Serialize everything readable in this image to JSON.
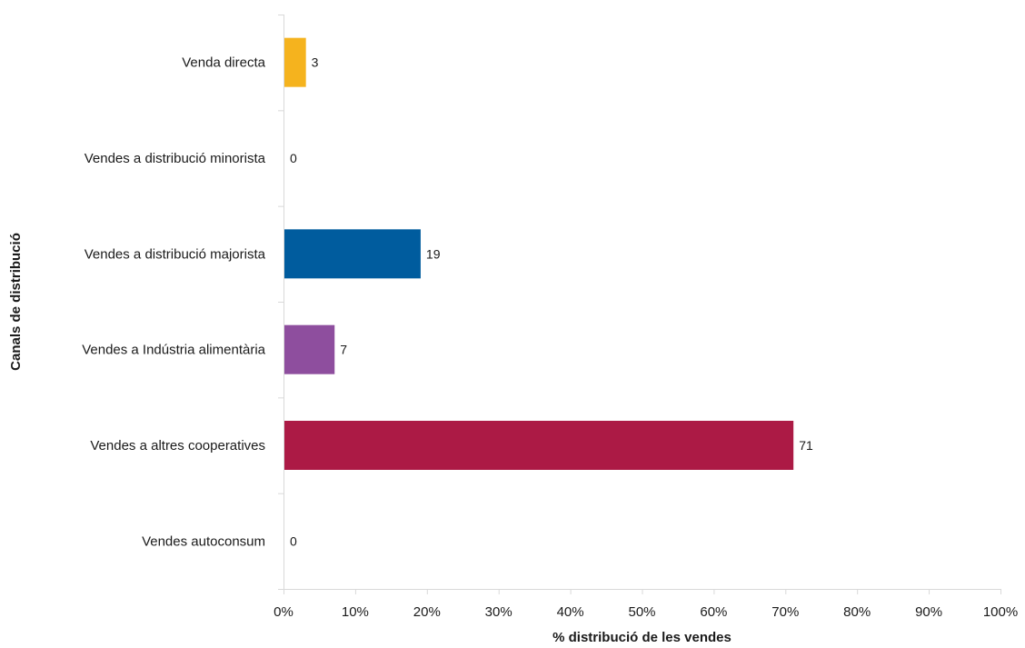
{
  "chart_data": {
    "type": "bar",
    "orientation": "horizontal",
    "categories": [
      "Venda directa",
      "Vendes a distribució minorista",
      "Vendes a distribució majorista",
      "Vendes a Indústria alimentària",
      "Vendes a altres cooperatives",
      "Vendes autoconsum"
    ],
    "values": [
      3,
      0,
      19,
      7,
      71,
      0
    ],
    "value_labels": [
      "3",
      "0",
      "19",
      "7",
      "71",
      "0"
    ],
    "colors": [
      "#F5B31E",
      "#1D5A9A",
      "#005C9E",
      "#8E4E9E",
      "#AC1A45",
      "#333333"
    ],
    "xlabel": "% distribució de les vendes",
    "ylabel": "Canals de distribució",
    "xlim": [
      0,
      100
    ],
    "x_ticks": [
      0,
      10,
      20,
      30,
      40,
      50,
      60,
      70,
      80,
      90,
      100
    ],
    "x_tick_labels": [
      "0%",
      "10%",
      "20%",
      "30%",
      "40%",
      "50%",
      "60%",
      "70%",
      "80%",
      "90%",
      "100%"
    ],
    "grid": false,
    "legend": "none"
  }
}
